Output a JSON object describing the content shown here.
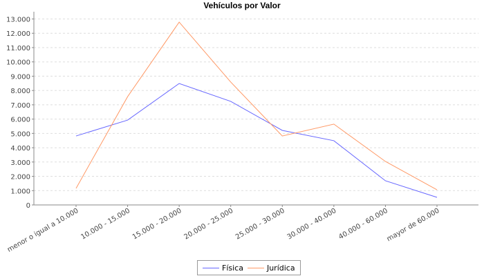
{
  "chart_data": {
    "type": "line",
    "title": "Vehículos por Valor",
    "xlabel": "",
    "ylabel": "",
    "categories": [
      "menor o igual a 10.000",
      "10.000 - 15.000",
      "15.000 - 20.000",
      "20.000 - 25.000",
      "25.000 - 30.000",
      "30.000 - 40.000",
      "40.000 - 60.000",
      "mayor de 60.000"
    ],
    "ylim": [
      0,
      13500
    ],
    "yticks": [
      0,
      1000,
      2000,
      3000,
      4000,
      5000,
      6000,
      7000,
      8000,
      9000,
      10000,
      11000,
      12000,
      13000
    ],
    "ytick_labels": [
      "0",
      "1.000",
      "2.000",
      "3.000",
      "4.000",
      "5.000",
      "6.000",
      "7.000",
      "8.000",
      "9.000",
      "10.000",
      "11.000",
      "12.000",
      "13.000"
    ],
    "grid": true,
    "legend_position": "bottom",
    "series": [
      {
        "name": "Física",
        "color": "#6666ff",
        "values": [
          4820,
          5930,
          8490,
          7240,
          5210,
          4490,
          1690,
          530
        ]
      },
      {
        "name": "Jurídica",
        "color": "#ff9966",
        "values": [
          1160,
          7570,
          12780,
          8590,
          4820,
          5650,
          3040,
          1060
        ]
      }
    ]
  }
}
